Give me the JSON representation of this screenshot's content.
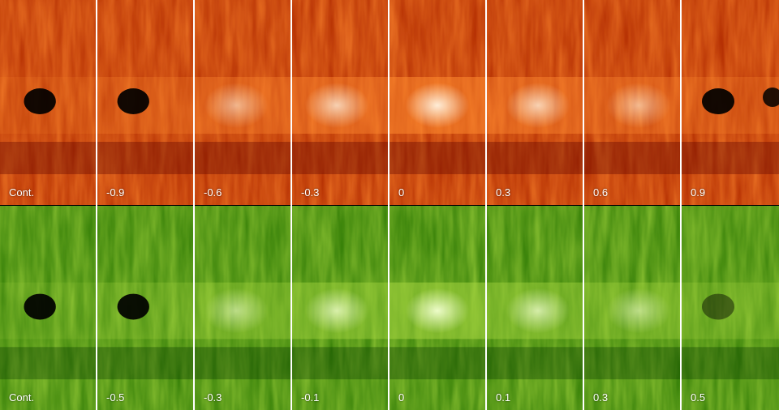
{
  "red_row": {
    "labels": [
      "Cont.",
      "-0.9",
      "-0.6",
      "-0.3",
      "0",
      "0.3",
      "0.6",
      "0.9"
    ]
  },
  "green_row": {
    "labels": [
      "Cont.",
      "-0.5",
      "-0.3",
      "-0.1",
      "0",
      "0.1",
      "0.3",
      "0.5"
    ]
  },
  "colors": {
    "red_dark": "#5a0000",
    "red_mid": "#b02a00",
    "red_bright": "#ff8a30",
    "red_white": "#fff3e0",
    "green_dark": "#0a3a00",
    "green_mid": "#2f7a05",
    "green_bright": "#a6d640",
    "green_white": "#f2ffd0"
  }
}
